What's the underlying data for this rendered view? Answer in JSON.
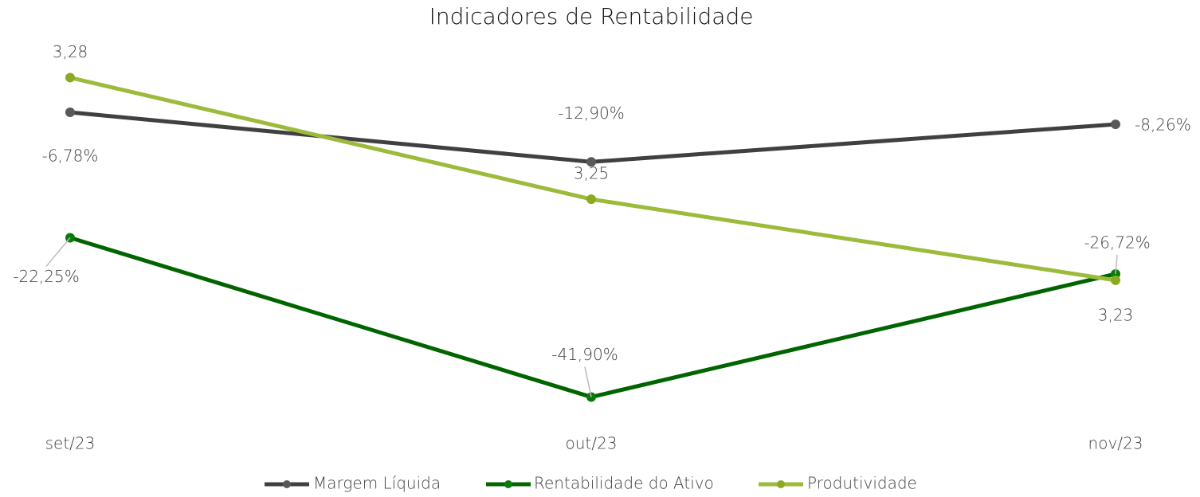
{
  "chart_data": {
    "type": "line",
    "title": "Indicadores de Rentabilidade",
    "categories": [
      "set/23",
      "out/23",
      "nov/23"
    ],
    "ylim": [
      -45,
      0
    ],
    "y2lim": [
      3.195,
      3.285
    ],
    "legend": "bottom",
    "series": [
      {
        "name": "Margem Líquida",
        "color": "#404040",
        "marker_color": "#595959",
        "values": [
          -6.78,
          -12.9,
          -8.26
        ],
        "value_labels": [
          "-6,78%",
          "-12,90%",
          "-8,26%"
        ]
      },
      {
        "name": "Rentabilidade do Ativo",
        "color": "#006400",
        "marker_color": "#0a7a0a",
        "values": [
          -22.25,
          -41.9,
          -26.72
        ],
        "value_labels": [
          "-22,25%",
          "-41,90%",
          "-26,72%"
        ]
      },
      {
        "name": "Produtividade",
        "color": "#9bbb3b",
        "marker_color": "#8aaa22",
        "axis": "y2",
        "values": [
          3.28,
          3.25,
          3.23
        ],
        "value_labels": [
          "3,28",
          "3,25",
          "3,23"
        ]
      }
    ]
  }
}
